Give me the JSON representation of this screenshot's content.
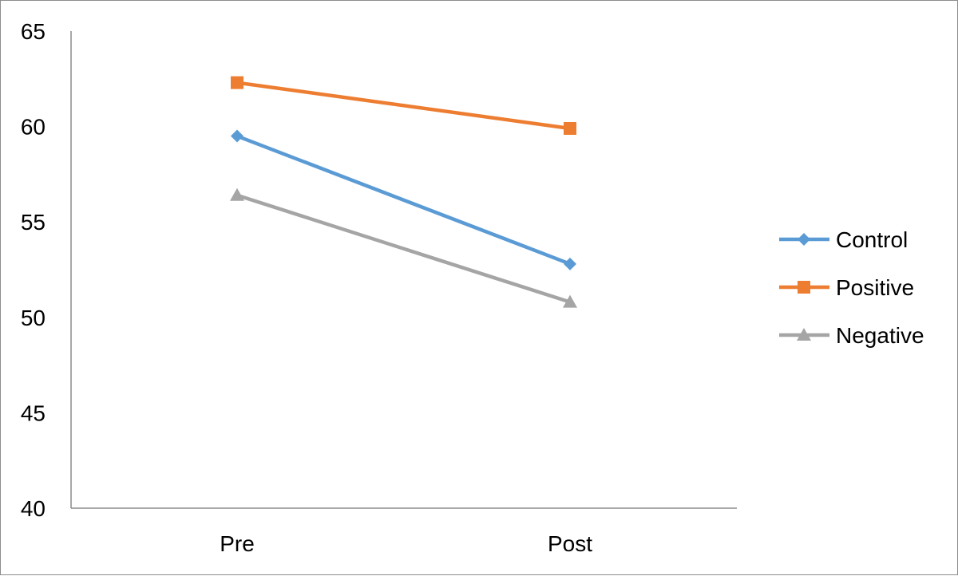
{
  "chart_data": {
    "type": "line",
    "categories": [
      "Pre",
      "Post"
    ],
    "series": [
      {
        "name": "Control",
        "values": [
          59.5,
          52.8
        ],
        "color": "#5b9bd5",
        "marker": "diamond"
      },
      {
        "name": "Positive",
        "values": [
          62.3,
          59.9
        ],
        "color": "#ed7d31",
        "marker": "square"
      },
      {
        "name": "Negative",
        "values": [
          56.4,
          50.8
        ],
        "color": "#a5a5a5",
        "marker": "triangle"
      }
    ],
    "title": "",
    "xlabel": "",
    "ylabel": "",
    "ylim": [
      40,
      65
    ],
    "yticks": [
      40,
      45,
      50,
      55,
      60,
      65
    ],
    "grid": false,
    "legend": "right"
  }
}
